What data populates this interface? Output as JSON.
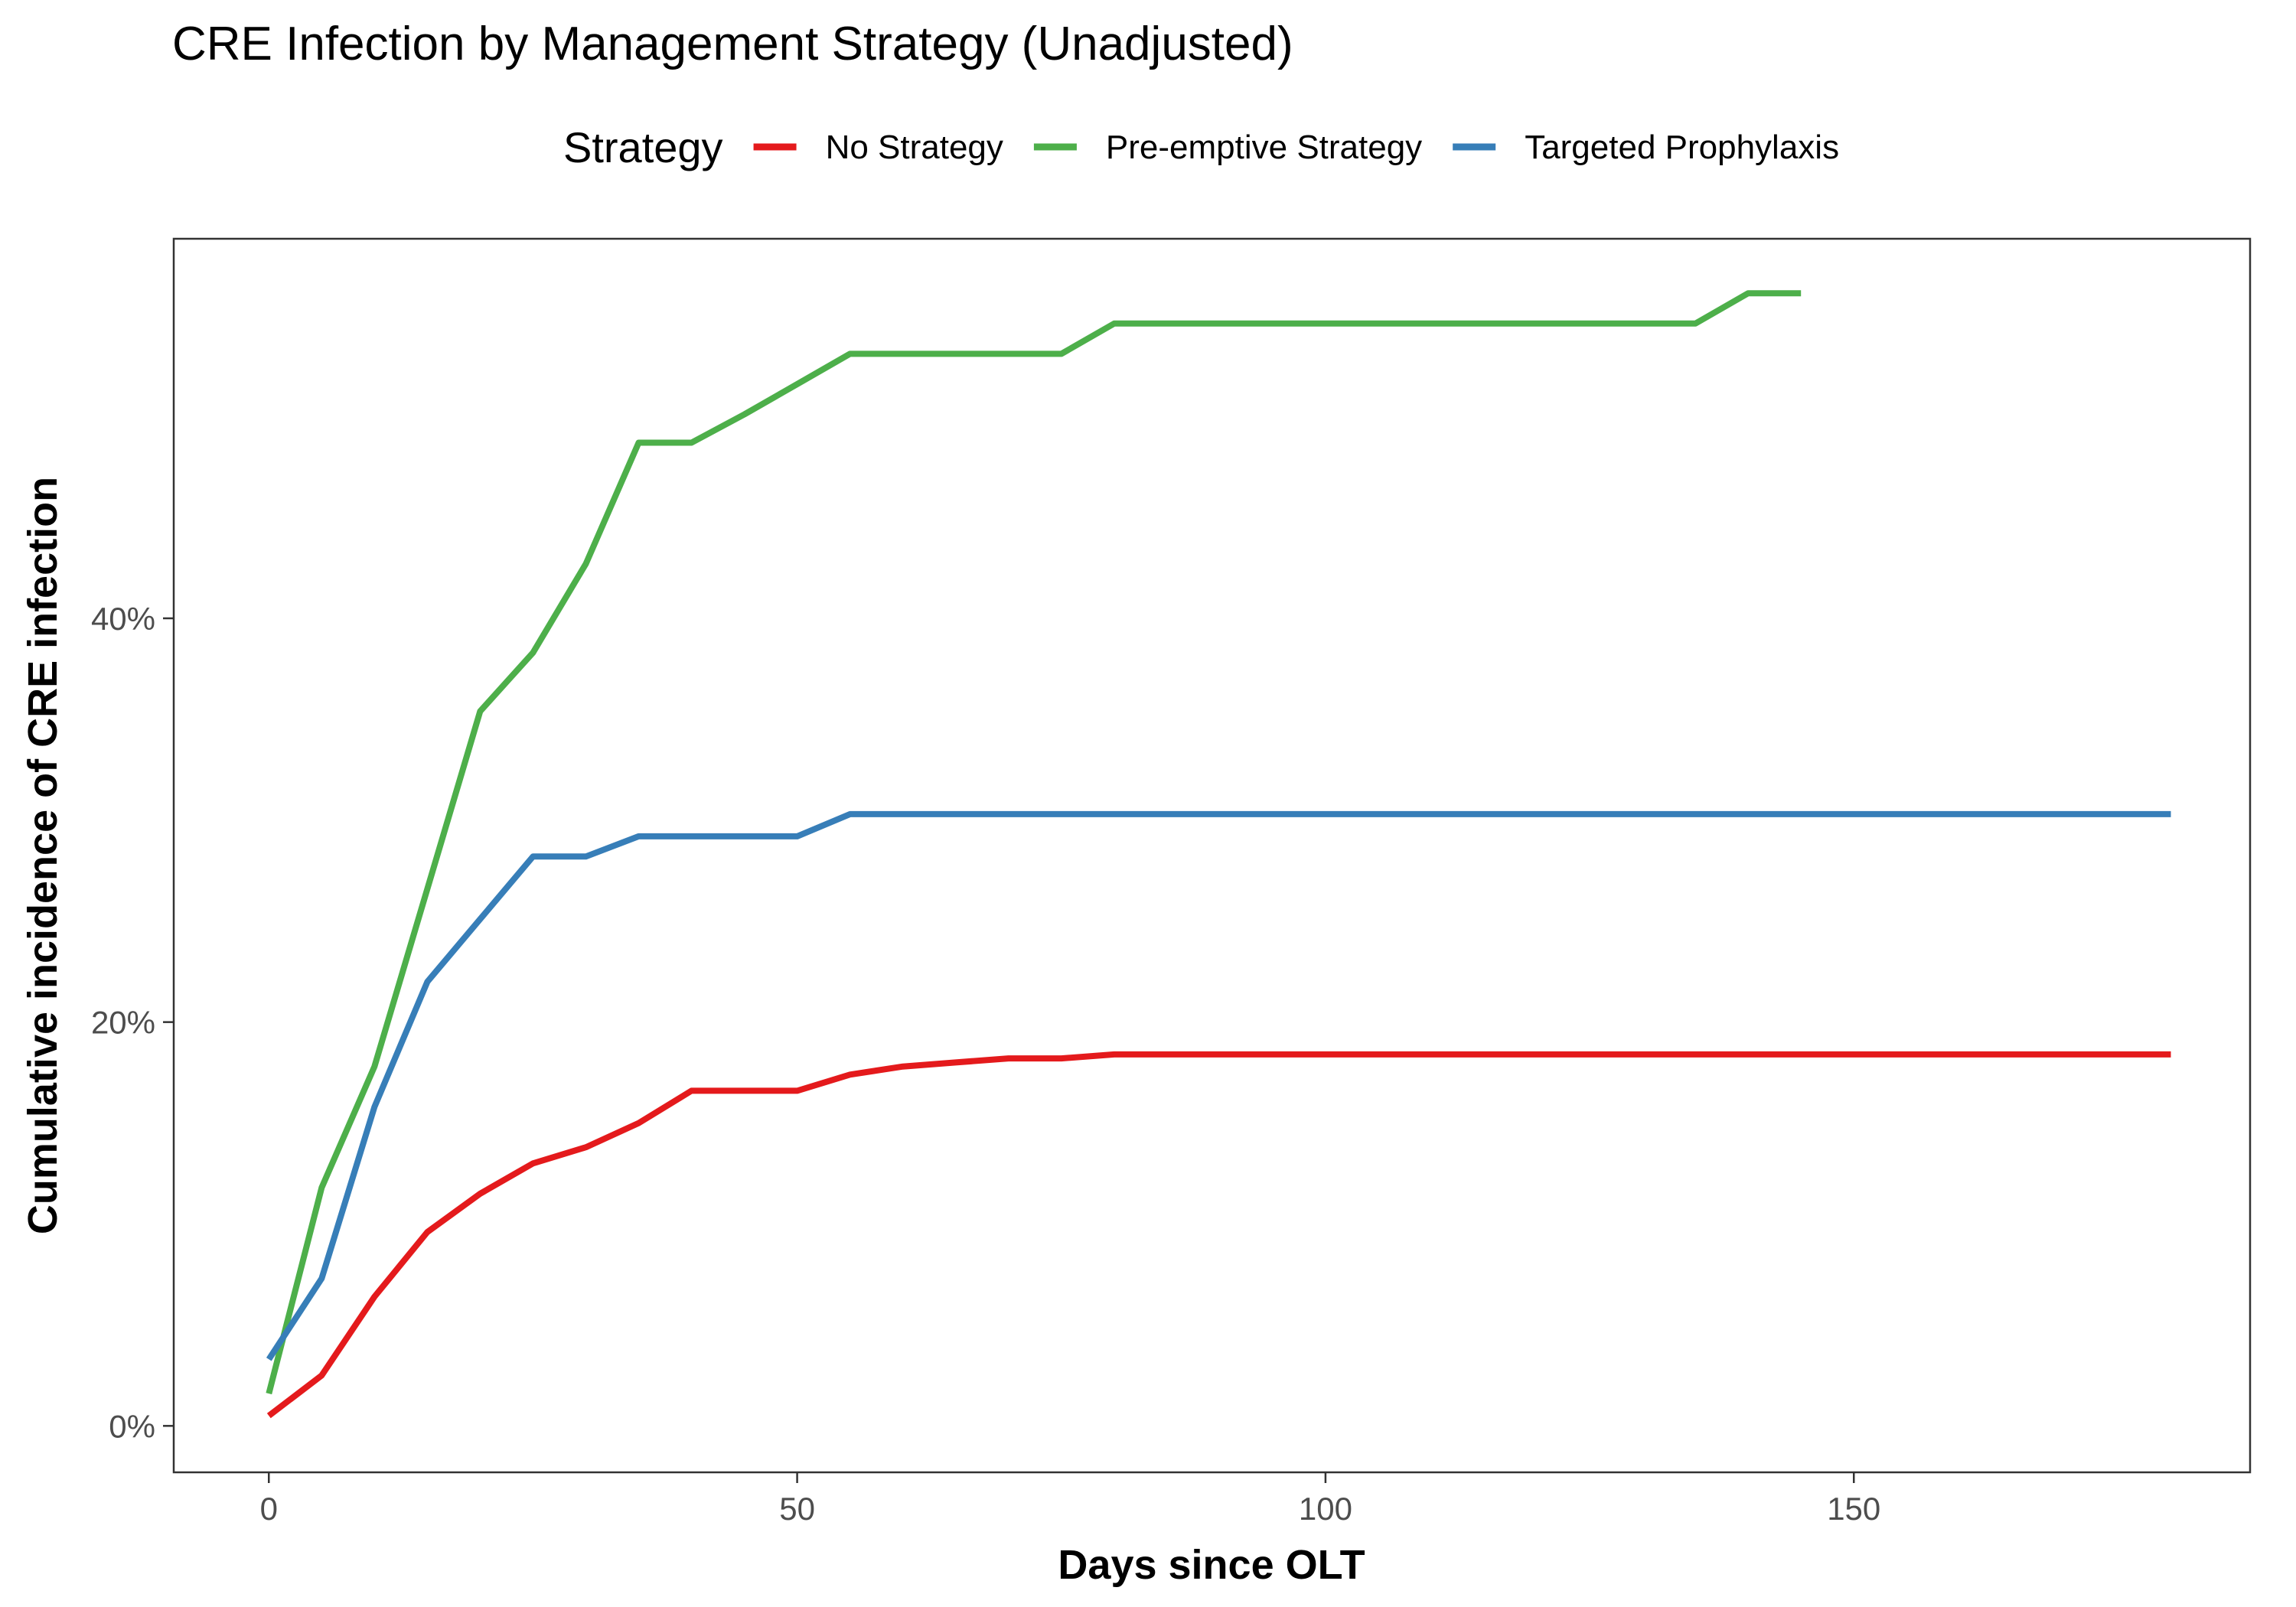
{
  "chart_data": {
    "type": "line",
    "title": "CRE Infection by Management Strategy (Unadjusted)",
    "xlabel": "Days since OLT",
    "ylabel": "Cumulative incidence of CRE infection",
    "xlim": [
      -9,
      187.5
    ],
    "ylim": [
      -0.023,
      0.588
    ],
    "x_ticks": [
      0,
      50,
      100,
      150
    ],
    "x_tick_labels": [
      "0",
      "50",
      "100",
      "150"
    ],
    "y_ticks": [
      0,
      0.2,
      0.4
    ],
    "y_tick_labels": [
      "0%",
      "20%",
      "40%"
    ],
    "grid": false,
    "legend": {
      "title": "Strategy",
      "position": "top"
    },
    "series": [
      {
        "name": "No Strategy",
        "color": "#e41a1c",
        "x": [
          0,
          5,
          10,
          15,
          20,
          25,
          30,
          35,
          40,
          45,
          50,
          55,
          60,
          65,
          70,
          75,
          80,
          90,
          100,
          120,
          150,
          180
        ],
        "y": [
          0.005,
          0.025,
          0.064,
          0.096,
          0.115,
          0.13,
          0.138,
          0.15,
          0.166,
          0.166,
          0.166,
          0.174,
          0.178,
          0.18,
          0.182,
          0.182,
          0.184,
          0.184,
          0.184,
          0.184,
          0.184,
          0.184
        ]
      },
      {
        "name": "Pre-emptive Strategy",
        "color": "#4daf4a",
        "x": [
          0,
          5,
          10,
          15,
          20,
          25,
          30,
          35,
          40,
          45,
          50,
          55,
          60,
          65,
          70,
          75,
          80,
          90,
          100,
          110,
          120,
          130,
          135,
          140,
          145
        ],
        "y": [
          0.016,
          0.118,
          0.178,
          0.266,
          0.354,
          0.383,
          0.427,
          0.487,
          0.487,
          0.501,
          0.516,
          0.531,
          0.531,
          0.531,
          0.531,
          0.531,
          0.546,
          0.546,
          0.546,
          0.546,
          0.546,
          0.546,
          0.546,
          0.561,
          0.561
        ]
      },
      {
        "name": "Targeted Prophylaxis",
        "color": "#377eb8",
        "x": [
          0,
          5,
          10,
          15,
          20,
          25,
          30,
          35,
          40,
          45,
          50,
          55,
          60,
          80,
          100,
          150,
          180
        ],
        "y": [
          0.033,
          0.073,
          0.158,
          0.22,
          0.251,
          0.282,
          0.282,
          0.292,
          0.292,
          0.292,
          0.292,
          0.303,
          0.303,
          0.303,
          0.303,
          0.303,
          0.303
        ]
      }
    ]
  }
}
